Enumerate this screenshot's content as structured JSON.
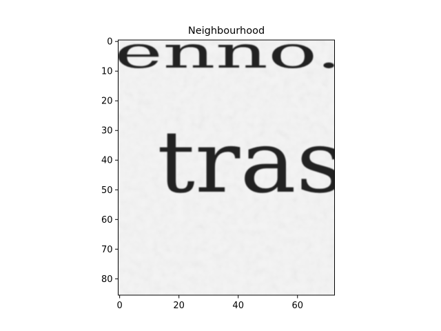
{
  "chart_data": {
    "type": "heatmap",
    "title": "Neighbourhood",
    "xlabel": "",
    "ylabel": "",
    "colormap": "gray",
    "image_size": {
      "columns": 73,
      "rows": 86
    },
    "xlim": [
      -0.5,
      72.5
    ],
    "ylim": [
      85.5,
      -0.5
    ],
    "x_ticks": [
      0,
      20,
      40,
      60
    ],
    "y_ticks": [
      0,
      10,
      20,
      30,
      40,
      50,
      60,
      70,
      80
    ],
    "x_tick_labels": [
      "0",
      "20",
      "40",
      "60"
    ],
    "y_tick_labels": [
      "0",
      "10",
      "20",
      "30",
      "40",
      "50",
      "60",
      "70",
      "80"
    ],
    "image_content": {
      "description": "Grayscale crop of a scanned page showing a serif word fragment",
      "top_line_text": "enno.",
      "main_text": "tras"
    },
    "colors": {
      "background": "#f4f4f4",
      "ink": "#222222",
      "axes": "#000000"
    }
  }
}
